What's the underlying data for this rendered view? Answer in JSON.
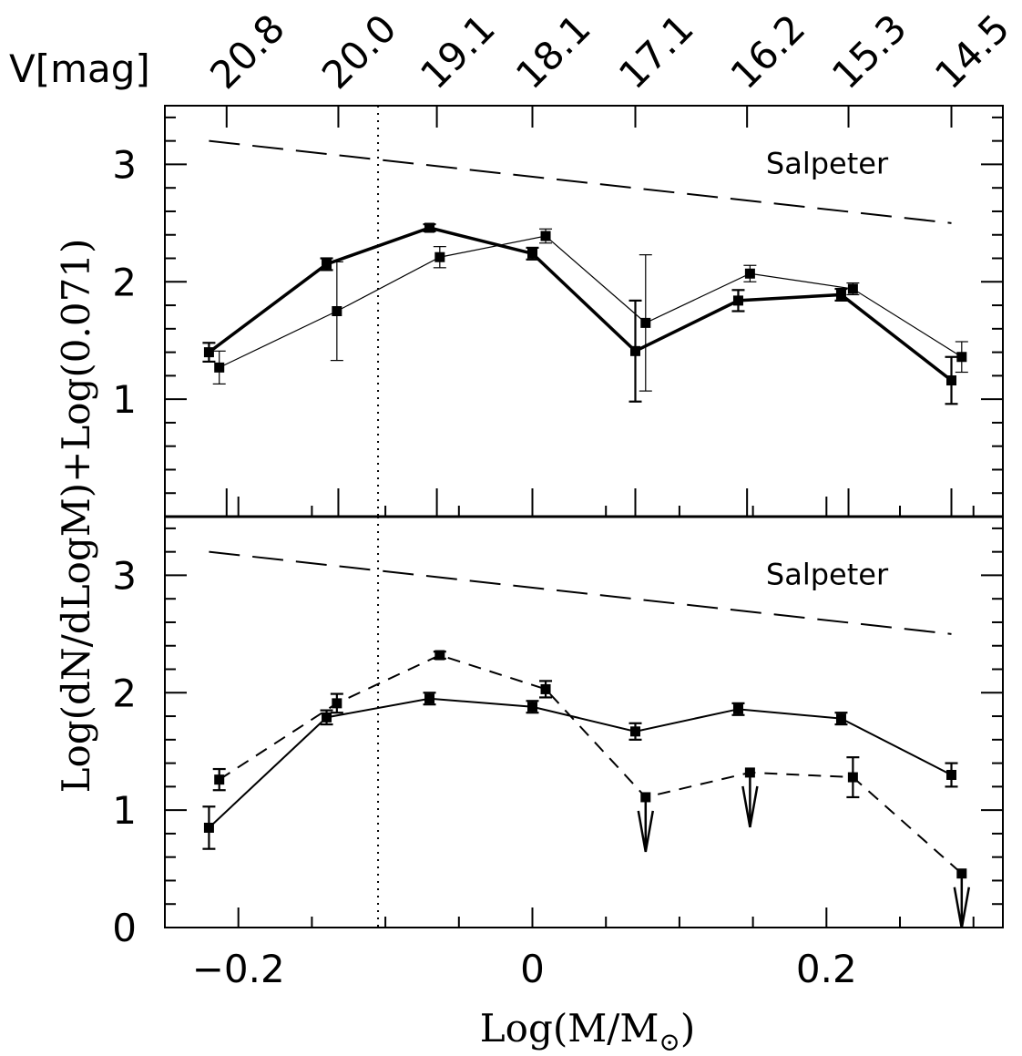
{
  "chart_data": {
    "type": "line",
    "xlabel": "Log(M/M",
    "xlabel_sub": "⊙",
    "xlabel_close": ")",
    "ylabel": "Log(dN/dLogM)+Log(0.071)",
    "xlim": [
      -0.25,
      0.32
    ],
    "x_ticks": [
      "-0.2",
      "0",
      "0.2"
    ],
    "x_tick_values": [
      -0.2,
      0,
      0.2
    ],
    "top_axis": {
      "label": "V[mag]",
      "ticks": [
        "20.8",
        "20.0",
        "19.1",
        "18.1",
        "17.1",
        "16.2",
        "15.3",
        "14.5"
      ],
      "tick_x": [
        -0.208,
        -0.132,
        -0.065,
        0.0,
        0.07,
        0.146,
        0.215,
        0.285
      ]
    },
    "vline_x": -0.105,
    "panels": [
      {
        "name": "top",
        "ylim": [
          0,
          3.5
        ],
        "y_ticks": [
          "1",
          "2",
          "3"
        ],
        "y_tick_values": [
          1,
          2,
          3
        ],
        "salpeter": {
          "label": "Salpeter",
          "x": [
            -0.22,
            0.285
          ],
          "y": [
            3.2,
            2.5
          ]
        },
        "series": [
          {
            "style": "thick",
            "x": [
              -0.22,
              -0.14,
              -0.07,
              0.0,
              0.07,
              0.14,
              0.21,
              0.285
            ],
            "y": [
              1.4,
              2.15,
              2.46,
              2.24,
              1.41,
              1.84,
              1.89,
              1.16
            ],
            "err": [
              0.08,
              0.05,
              0.03,
              0.05,
              0.43,
              0.09,
              0.05,
              0.2
            ],
            "upper_limit": [
              false,
              false,
              false,
              false,
              false,
              false,
              false,
              false
            ]
          },
          {
            "style": "thin",
            "x": [
              -0.213,
              -0.133,
              -0.063,
              0.009,
              0.077,
              0.148,
              0.218,
              0.292
            ],
            "y": [
              1.27,
              1.75,
              2.21,
              2.39,
              1.65,
              2.07,
              1.94,
              1.36
            ],
            "err": [
              0.14,
              0.42,
              0.09,
              0.06,
              0.58,
              0.07,
              0.05,
              0.13
            ],
            "upper_limit": [
              false,
              false,
              false,
              false,
              false,
              false,
              false,
              false
            ]
          }
        ]
      },
      {
        "name": "bottom",
        "ylim": [
          0,
          3.5
        ],
        "y_ticks": [
          "0",
          "1",
          "2",
          "3"
        ],
        "y_tick_values": [
          0,
          1,
          2,
          3
        ],
        "salpeter": {
          "label": "Salpeter",
          "x": [
            -0.22,
            0.285
          ],
          "y": [
            3.2,
            2.5
          ]
        },
        "series": [
          {
            "style": "solid",
            "x": [
              -0.22,
              -0.14,
              -0.07,
              0.0,
              0.07,
              0.14,
              0.21,
              0.285
            ],
            "y": [
              0.85,
              1.79,
              1.95,
              1.88,
              1.67,
              1.86,
              1.78,
              1.3
            ],
            "err": [
              0.18,
              0.06,
              0.05,
              0.05,
              0.07,
              0.05,
              0.05,
              0.1
            ],
            "upper_limit": [
              false,
              false,
              false,
              false,
              false,
              false,
              false,
              false
            ]
          },
          {
            "style": "dashed",
            "x": [
              -0.213,
              -0.133,
              -0.063,
              0.009,
              0.077,
              0.148,
              0.218,
              0.292
            ],
            "y": [
              1.26,
              1.91,
              2.32,
              2.03,
              1.11,
              1.32,
              1.28,
              0.46
            ],
            "err": [
              0.09,
              0.08,
              0.03,
              0.07,
              0.0,
              0.0,
              0.17,
              0.0
            ],
            "upper_limit": [
              false,
              false,
              false,
              false,
              true,
              true,
              false,
              true
            ]
          }
        ]
      }
    ]
  }
}
